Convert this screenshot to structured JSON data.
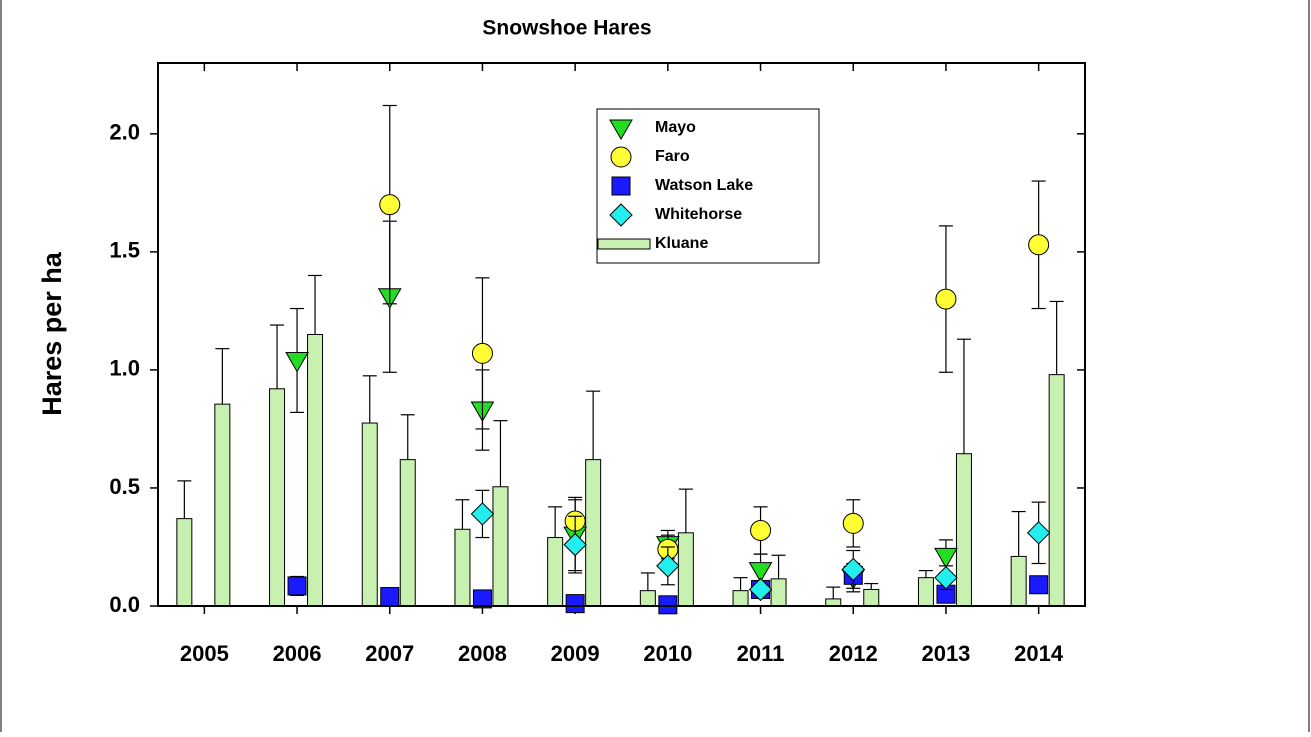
{
  "chart_data": {
    "type": "bar",
    "title": "Snowshoe Hares",
    "y_label": "Hares per ha",
    "categories": [
      "2005",
      "2006",
      "2007",
      "2008",
      "2009",
      "2010",
      "2011",
      "2012",
      "2013",
      "2014"
    ],
    "ylim": [
      0,
      2.3
    ],
    "yticks": [
      {
        "value": 0,
        "label": "0.0"
      },
      0.5,
      {
        "value": 1,
        "label": "1.0"
      },
      1.5,
      {
        "value": 2,
        "label": "2.0"
      }
    ],
    "series": [
      {
        "name": "Mayo",
        "type": "scatter",
        "marker": "triangle-down",
        "color": "#22dd22",
        "values": [
          null,
          1.04,
          1.31,
          0.83,
          0.3,
          0.26,
          0.15,
          0.12,
          0.21,
          null
        ],
        "errors": [
          null,
          0.22,
          0.32,
          0.17,
          0.15,
          0.06,
          0.07,
          0.06,
          0.07,
          null
        ]
      },
      {
        "name": "Faro",
        "type": "scatter",
        "marker": "circle",
        "color": "#ffff33",
        "values": [
          null,
          null,
          1.7,
          1.07,
          0.36,
          0.24,
          0.32,
          0.35,
          1.3,
          1.53
        ],
        "errors": [
          null,
          null,
          0.42,
          0.32,
          0.1,
          0.06,
          0.1,
          0.1,
          0.31,
          0.27
        ]
      },
      {
        "name": "Watson Lake",
        "type": "scatter",
        "marker": "square",
        "color": "#1a1aff",
        "values": [
          null,
          0.085,
          0.04,
          0.03,
          0.01,
          0.005,
          0.07,
          0.13,
          0.05,
          0.09
        ],
        "errors": [
          null,
          0.04,
          null,
          null,
          null,
          null,
          null,
          null,
          null,
          null
        ]
      },
      {
        "name": "Whitehorse",
        "type": "scatter",
        "marker": "diamond",
        "color": "#22eeee",
        "values": [
          null,
          null,
          null,
          0.39,
          0.26,
          0.17,
          0.07,
          0.155,
          0.12,
          0.31
        ],
        "errors": [
          null,
          null,
          null,
          0.1,
          0.12,
          0.08,
          0.02,
          0.08,
          0.05,
          0.13
        ]
      },
      {
        "name": "Kluane",
        "type": "bar",
        "color": "#c8f0b0",
        "values": [
          0.37,
          0.92,
          0.775,
          0.325,
          0.29,
          0.065,
          0.065,
          0.03,
          0.12,
          0.21
        ],
        "errors": [
          0.16,
          0.27,
          0.2,
          0.125,
          0.13,
          0.075,
          0.055,
          0.05,
          0.03,
          0.19
        ]
      },
      {
        "type": "bar",
        "color": "#c8f0b0",
        "values": [
          0.855,
          1.15,
          0.62,
          0.505,
          0.62,
          0.31,
          0.115,
          0.07,
          0.645,
          0.98
        ],
        "errors": [
          0.235,
          0.25,
          0.19,
          0.28,
          0.29,
          0.185,
          0.1,
          0.025,
          0.485,
          0.31
        ]
      }
    ]
  }
}
